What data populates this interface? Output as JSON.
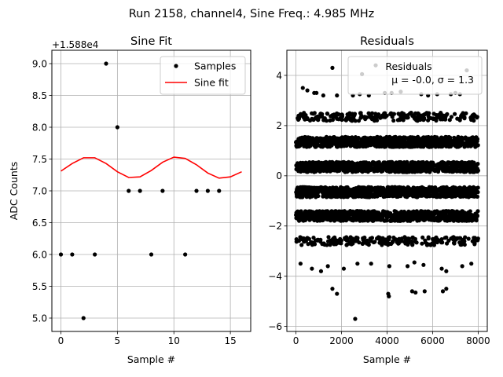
{
  "figure": {
    "suptitle": "Run 2158, channel4, Sine Freq.: 4.985 MHz"
  },
  "chart_data": [
    {
      "type": "scatter",
      "title": "Sine Fit",
      "xlabel": "Sample #",
      "ylabel": "ADC Counts",
      "offset_label": "+1.588e4",
      "xlim": [
        -0.8,
        16.8
      ],
      "ylim": [
        4.79,
        9.21
      ],
      "xticks": [
        0,
        5,
        10,
        15
      ],
      "yticks": [
        5.0,
        5.5,
        6.0,
        6.5,
        7.0,
        7.5,
        8.0,
        8.5,
        9.0
      ],
      "grid": true,
      "legend": {
        "position": "top-right",
        "entries": [
          "Samples",
          "Sine fit"
        ]
      },
      "series": [
        {
          "name": "Samples",
          "kind": "points",
          "color": "#000000",
          "x": [
            0,
            1,
            2,
            3,
            4,
            5,
            6,
            7,
            8,
            9,
            11,
            12,
            13,
            14
          ],
          "y": [
            6,
            6,
            5,
            6,
            9,
            8,
            7,
            7,
            6,
            7,
            6,
            7,
            7,
            7
          ]
        },
        {
          "name": "Sine fit",
          "kind": "line",
          "color": "#ff0000",
          "x": [
            0,
            1,
            2,
            3,
            4,
            5,
            6,
            7,
            8,
            9,
            10,
            11,
            12,
            13,
            14,
            15,
            16
          ],
          "y": [
            7.31,
            7.43,
            7.52,
            7.52,
            7.43,
            7.3,
            7.21,
            7.22,
            7.32,
            7.45,
            7.53,
            7.51,
            7.41,
            7.28,
            7.2,
            7.22,
            7.3
          ]
        }
      ]
    },
    {
      "type": "scatter",
      "title": "Residuals",
      "xlabel": "Sample #",
      "ylabel": "",
      "xlim": [
        -400,
        8400
      ],
      "ylim": [
        -6.2,
        5.0
      ],
      "xticks": [
        0,
        2000,
        4000,
        6000,
        8000
      ],
      "yticks": [
        -6,
        -4,
        -2,
        0,
        2,
        4
      ],
      "grid": true,
      "legend": {
        "position": "top-right",
        "title": "Residuals",
        "entries": [
          "μ = -0.0, σ = 1.3"
        ]
      },
      "band_levels": [
        2.35,
        1.35,
        0.35,
        -0.65,
        -1.6,
        -2.6
      ],
      "band_x_range": [
        0,
        8000
      ],
      "sparse_points": {
        "x": [
          3500,
          1600,
          7500,
          800,
          2900,
          5000,
          6200,
          300,
          1200,
          4200,
          5500,
          7000,
          2500,
          6800,
          500,
          3200,
          900,
          1800,
          4600,
          2800,
          3900,
          5800,
          7200,
          200,
          1400,
          2100,
          3300,
          4900,
          5600,
          6400,
          7700,
          700,
          1100,
          2700,
          4100,
          5200,
          6600,
          7300,
          1600,
          1800,
          2600,
          4050,
          4080,
          5100,
          5250,
          5650,
          6600,
          6450
        ],
        "y": [
          4.4,
          4.3,
          4.2,
          3.3,
          4.05,
          4.35,
          3.25,
          3.5,
          3.2,
          3.3,
          3.25,
          3.3,
          3.2,
          3.25,
          3.4,
          3.2,
          3.3,
          3.2,
          3.35,
          3.25,
          3.3,
          3.2,
          3.25,
          -3.5,
          -3.6,
          -3.7,
          -3.5,
          -3.6,
          -3.55,
          -3.7,
          -3.5,
          -3.7,
          -3.8,
          -3.5,
          -3.6,
          -3.45,
          -3.8,
          -3.6,
          -4.5,
          -4.7,
          -5.7,
          -4.7,
          -4.8,
          -4.6,
          -4.65,
          -4.6,
          -4.5,
          -4.6
        ]
      }
    }
  ]
}
